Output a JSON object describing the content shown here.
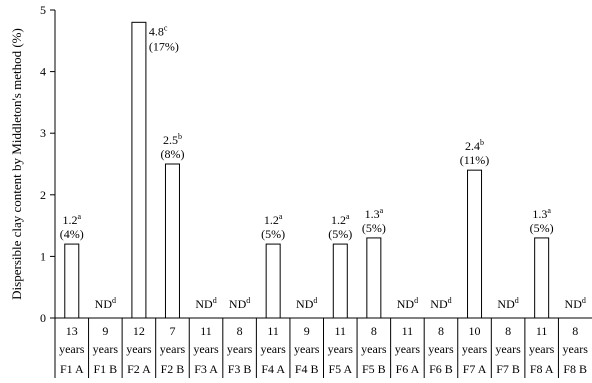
{
  "chart_data": {
    "type": "bar",
    "title": "",
    "xlabel": "",
    "ylabel": "Dispersible clay content by Middleton's method (%)",
    "ylim": [
      0,
      5
    ],
    "yticks": [
      0,
      1,
      2,
      3,
      4,
      5
    ],
    "grid": false,
    "legend": "none",
    "categories": [
      {
        "age": "13",
        "unit": "years",
        "site": "F1 A"
      },
      {
        "age": "9",
        "unit": "years",
        "site": "F1 B"
      },
      {
        "age": "12",
        "unit": "years",
        "site": "F2 A"
      },
      {
        "age": "7",
        "unit": "years",
        "site": "F2 B"
      },
      {
        "age": "11",
        "unit": "years",
        "site": "F3 A"
      },
      {
        "age": "8",
        "unit": "years",
        "site": "F3 B"
      },
      {
        "age": "11",
        "unit": "years",
        "site": "F4 A"
      },
      {
        "age": "9",
        "unit": "years",
        "site": "F4 B"
      },
      {
        "age": "11",
        "unit": "years",
        "site": "F5 A"
      },
      {
        "age": "8",
        "unit": "years",
        "site": "F5 B"
      },
      {
        "age": "11",
        "unit": "years",
        "site": "F6 A"
      },
      {
        "age": "8",
        "unit": "years",
        "site": "F6 B"
      },
      {
        "age": "10",
        "unit": "years",
        "site": "F7 A"
      },
      {
        "age": "8",
        "unit": "years",
        "site": "F7 B"
      },
      {
        "age": "11",
        "unit": "years",
        "site": "F8 A"
      },
      {
        "age": "8",
        "unit": "years",
        "site": "F8 B"
      }
    ],
    "values": [
      1.2,
      null,
      4.8,
      2.5,
      null,
      null,
      1.2,
      null,
      1.2,
      1.3,
      null,
      null,
      2.4,
      null,
      1.3,
      null
    ],
    "labels": [
      {
        "value": "1.2",
        "sup": "a",
        "pct": "(4%)"
      },
      {
        "value": "ND",
        "sup": "d",
        "pct": ""
      },
      {
        "value": "4.8",
        "sup": "c",
        "pct": "(17%)"
      },
      {
        "value": "2.5",
        "sup": "b",
        "pct": "(8%)"
      },
      {
        "value": "ND",
        "sup": "d",
        "pct": ""
      },
      {
        "value": "ND",
        "sup": "d",
        "pct": ""
      },
      {
        "value": "1.2",
        "sup": "a",
        "pct": "(5%)"
      },
      {
        "value": "ND",
        "sup": "d",
        "pct": ""
      },
      {
        "value": "1.2",
        "sup": "a",
        "pct": "(5%)"
      },
      {
        "value": "1.3",
        "sup": "a",
        "pct": "(5%)"
      },
      {
        "value": "ND",
        "sup": "d",
        "pct": ""
      },
      {
        "value": "ND",
        "sup": "d",
        "pct": ""
      },
      {
        "value": "2.4",
        "sup": "b",
        "pct": "(11%)"
      },
      {
        "value": "ND",
        "sup": "d",
        "pct": ""
      },
      {
        "value": "1.3",
        "sup": "a",
        "pct": "(5%)"
      },
      {
        "value": "ND",
        "sup": "d",
        "pct": ""
      }
    ],
    "colors": {
      "bar_fill": "#ffffff",
      "bar_stroke": "#000000",
      "axis": "#000000"
    }
  }
}
